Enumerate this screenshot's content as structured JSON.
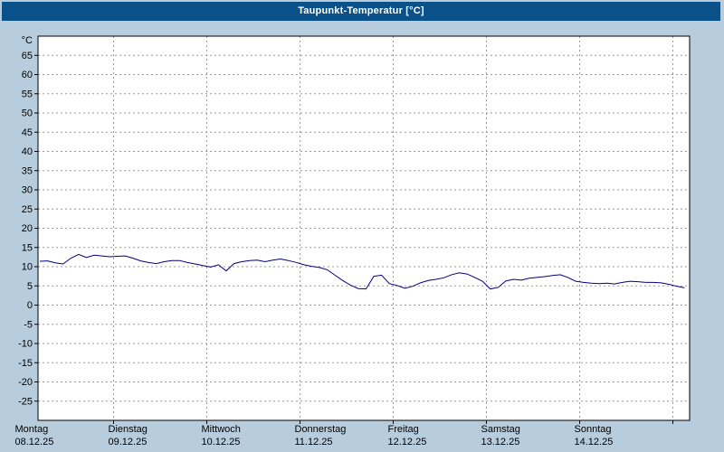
{
  "window": {
    "title": "Taupunkt-Temperatur [°C]"
  },
  "colors": {
    "titlebar_bg": "#0b5189",
    "titlebar_text": "#ffffff",
    "panel_bg": "#b7cddd",
    "plot_bg": "#ffffff",
    "plot_border": "#000000",
    "grid_color": "#999999",
    "tick_color": "#000000",
    "label_color": "#000000",
    "line_color": "#000080"
  },
  "chart_data": {
    "type": "line",
    "title": "Taupunkt-Temperatur [°C]",
    "legend": "none",
    "grid": true,
    "y_axis": {
      "unit_label": "°C",
      "min": -30,
      "max": 70,
      "tick_step": 5,
      "tick_labels": [
        65,
        60,
        55,
        50,
        45,
        40,
        35,
        30,
        25,
        20,
        15,
        10,
        5,
        0,
        -5,
        -10,
        -15,
        -20,
        -25
      ]
    },
    "x_axis": {
      "unit": "hours_from_monday_00:00",
      "span_hours": 168,
      "days": [
        {
          "name": "Montag",
          "date": "08.12.25"
        },
        {
          "name": "Dienstag",
          "date": "09.12.25"
        },
        {
          "name": "Mittwoch",
          "date": "10.12.25"
        },
        {
          "name": "Donnerstag",
          "date": "11.12.25"
        },
        {
          "name": "Freitag",
          "date": "12.12.25"
        },
        {
          "name": "Samstag",
          "date": "13.12.25"
        },
        {
          "name": "Sonntag",
          "date": "14.12.25"
        }
      ]
    },
    "series": [
      {
        "name": "Taupunkt-Temperatur",
        "color": "#000080",
        "x_hours": [
          5,
          7,
          9,
          11,
          13,
          15,
          17,
          19,
          21,
          23,
          25,
          27,
          29,
          31,
          33,
          35,
          37,
          39,
          41,
          43,
          45,
          47,
          49,
          51,
          53,
          55,
          57,
          59,
          61,
          63,
          65,
          67,
          69,
          71,
          73,
          75,
          77,
          79,
          81,
          83,
          85,
          87,
          89,
          91,
          93,
          95,
          97,
          99,
          101,
          103,
          105,
          107,
          109,
          111,
          113,
          115,
          117,
          119,
          121,
          123,
          125,
          127,
          129,
          131,
          133,
          135,
          137,
          139,
          141,
          143,
          145,
          147,
          149,
          151,
          153,
          155,
          157,
          159,
          161,
          163,
          165,
          167,
          169,
          171
        ],
        "values": [
          11.4,
          11.5,
          11.0,
          10.7,
          12.2,
          13.2,
          12.4,
          13.0,
          12.8,
          12.6,
          12.7,
          12.8,
          12.2,
          11.5,
          11.1,
          10.8,
          11.3,
          11.6,
          11.6,
          11.1,
          10.7,
          10.3,
          9.9,
          10.5,
          8.9,
          10.8,
          11.3,
          11.6,
          11.7,
          11.3,
          11.7,
          12.0,
          11.6,
          11.1,
          10.5,
          10.1,
          9.8,
          9.2,
          7.8,
          6.4,
          5.2,
          4.3,
          4.2,
          7.5,
          7.8,
          5.6,
          5.1,
          4.4,
          4.9,
          5.8,
          6.4,
          6.7,
          7.1,
          7.9,
          8.4,
          8.1,
          7.2,
          6.2,
          4.2,
          4.6,
          6.3,
          6.7,
          6.5,
          7.0,
          7.2,
          7.4,
          7.7,
          7.9,
          7.2,
          6.2,
          5.9,
          5.7,
          5.6,
          5.7,
          5.5,
          5.9,
          6.2,
          6.1,
          5.9,
          5.9,
          5.8,
          5.4,
          4.9,
          4.5
        ]
      }
    ]
  }
}
